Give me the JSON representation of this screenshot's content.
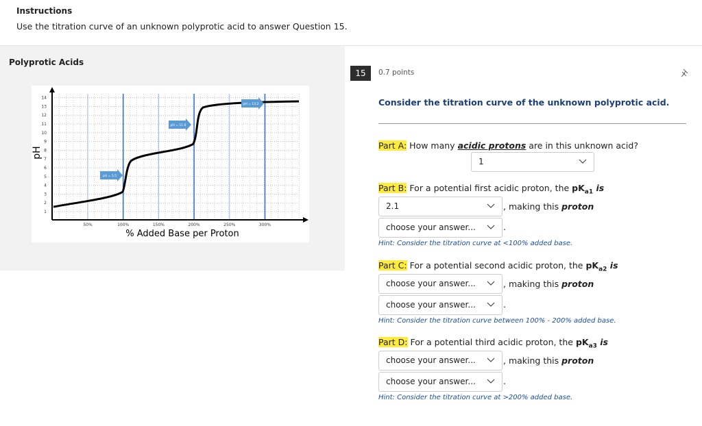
{
  "instructions": {
    "title": "Instructions",
    "text": "Use the titration curve of an unknown polyprotic acid to answer Question 15."
  },
  "figure": {
    "title": "Polyprotic Acids",
    "y_label": "pH",
    "x_label": "% Added Base per Proton",
    "yticks": [
      "1",
      "2",
      "3",
      "4",
      "5",
      "6",
      "7",
      "8",
      "9",
      "10",
      "11",
      "12",
      "13",
      "14"
    ],
    "xticks": [
      "50%",
      "100%",
      "150%",
      "200%",
      "250%",
      "300%"
    ],
    "annotations": [
      "pH = 5.5",
      "pH = 11.6",
      "pH = 13.2"
    ]
  },
  "question": {
    "number": "15",
    "points": "0.7 points",
    "prompt": "Consider the titration curve of the unknown polyprotic acid.",
    "part_a": {
      "label": "Part A",
      "colon": ":",
      "text_before": " How many ",
      "emphasis": "acidic protons",
      "text_after": " are in this unknown acid?",
      "answer": "1"
    },
    "parts": [
      {
        "label": "Part B",
        "colon": ":",
        "text": " For a potential first acidic proton, the ",
        "pk": "pK",
        "sub": "a1",
        "is": " is",
        "select1": "2.1",
        "making": ", making this ",
        "proton": "proton",
        "select2": "choose your answer...",
        "period": ".",
        "hint": "Hint: Consider the titration curve at <100% added base."
      },
      {
        "label": "Part C",
        "colon": ":",
        "text": " For a potential second acidic proton, the ",
        "pk": "pK",
        "sub": "a2",
        "is": " is",
        "select1": "choose your answer...",
        "making": ", making this ",
        "proton": "proton",
        "select2": "choose your answer...",
        "period": ".",
        "hint": "Hint: Consider the titration curve between 100% - 200% added base."
      },
      {
        "label": "Part D",
        "colon": ":",
        "text": " For a potential third acidic proton, the ",
        "pk": "pK",
        "sub": "a3",
        "is": " is",
        "select1": "choose your answer...",
        "making": ", making this ",
        "proton": "proton",
        "select2": "choose your answer...",
        "period": ".",
        "hint": "Hint: Consider the titration curve at >200% added base."
      }
    ]
  }
}
